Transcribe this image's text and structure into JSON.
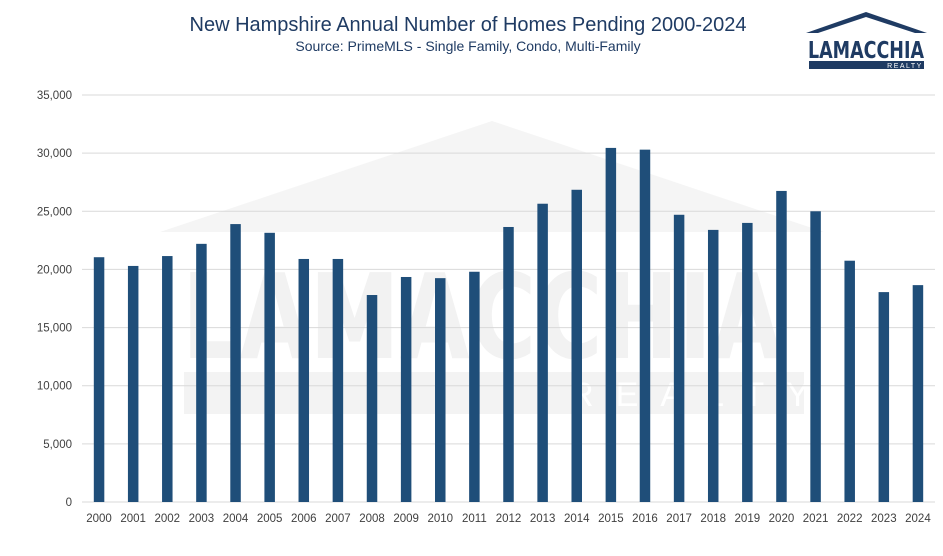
{
  "chart_data": {
    "type": "bar",
    "title": "New Hampshire Annual Number of Homes Pending 2000-2024",
    "subtitle": "Source: PrimeMLS - Single Family, Condo, Multi-Family",
    "categories": [
      "2000",
      "2001",
      "2002",
      "2003",
      "2004",
      "2005",
      "2006",
      "2007",
      "2008",
      "2009",
      "2010",
      "2011",
      "2012",
      "2013",
      "2014",
      "2015",
      "2016",
      "2017",
      "2018",
      "2019",
      "2020",
      "2021",
      "2022",
      "2023",
      "2024"
    ],
    "values": [
      21050,
      20300,
      21150,
      22200,
      23900,
      23150,
      20900,
      20900,
      17800,
      19350,
      19250,
      19800,
      23650,
      25650,
      26850,
      30450,
      30300,
      24700,
      23400,
      24000,
      26750,
      25000,
      20750,
      18050,
      18650
    ],
    "ylim": [
      0,
      35000
    ],
    "yticks": [
      0,
      5000,
      10000,
      15000,
      20000,
      25000,
      30000,
      35000
    ],
    "ytick_labels": [
      "0",
      "5,000",
      "10,000",
      "15,000",
      "20,000",
      "25,000",
      "30,000",
      "35,000"
    ],
    "xlabel": "",
    "ylabel": "",
    "grid": true,
    "legend": "none",
    "bar_color": "#1f4e79"
  },
  "logo": {
    "name": "LAMACCHIA",
    "tagline": "REALTY",
    "color": "#1f3b63"
  },
  "watermark": {
    "name": "LAMACCHIA",
    "tagline": "REALTY"
  }
}
